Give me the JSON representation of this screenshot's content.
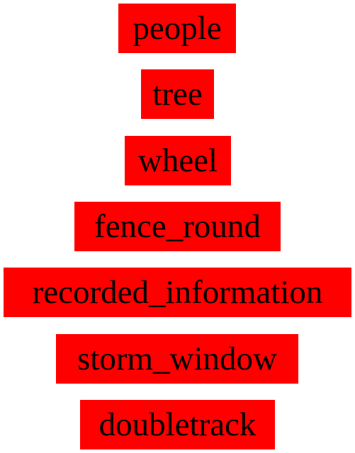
{
  "labels": [
    {
      "text": "people"
    },
    {
      "text": "tree"
    },
    {
      "text": "wheel"
    },
    {
      "text": "fence_round"
    },
    {
      "text": "recorded_information"
    },
    {
      "text": "storm_window"
    },
    {
      "text": "doubletrack"
    }
  ],
  "colors": {
    "box_background": "#ff0000",
    "text": "#000000",
    "page_background": "#ffffff"
  }
}
